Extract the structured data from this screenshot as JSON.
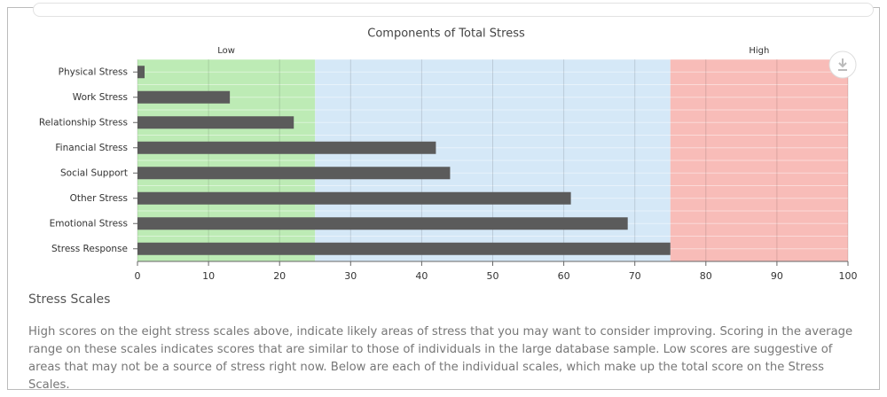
{
  "chart_data": {
    "type": "bar",
    "orientation": "horizontal",
    "title": "Components of Total Stress",
    "categories": [
      "Physical Stress",
      "Work Stress",
      "Relationship Stress",
      "Financial Stress",
      "Social Support",
      "Other Stress",
      "Emotional Stress",
      "Stress Response"
    ],
    "values": [
      1,
      13,
      22,
      42,
      44,
      61,
      69,
      75
    ],
    "color": "#5b5b5b",
    "xlim": [
      0,
      100
    ],
    "xticks": [
      0,
      10,
      20,
      30,
      40,
      50,
      60,
      70,
      80,
      90,
      100
    ],
    "grid": true,
    "bands": [
      {
        "from": 0,
        "to": 25,
        "color": "#bdebb5",
        "label": "Low"
      },
      {
        "from": 25,
        "to": 75,
        "color": "#d5e8f7"
      },
      {
        "from": 75,
        "to": 100,
        "color": "#f8bcb8",
        "label": "High"
      }
    ]
  },
  "section": {
    "title": "Stress Scales",
    "body": "High scores on the eight stress scales above, indicate likely areas of stress that you may want to consider improving. Scoring in the average range on these scales indicates scores that are similar to those of individuals in the large database sample. Low scores are suggestive of areas that may not be a source of stress right now. Below are each of the individual scales, which make up the total score on the Stress Scales."
  }
}
